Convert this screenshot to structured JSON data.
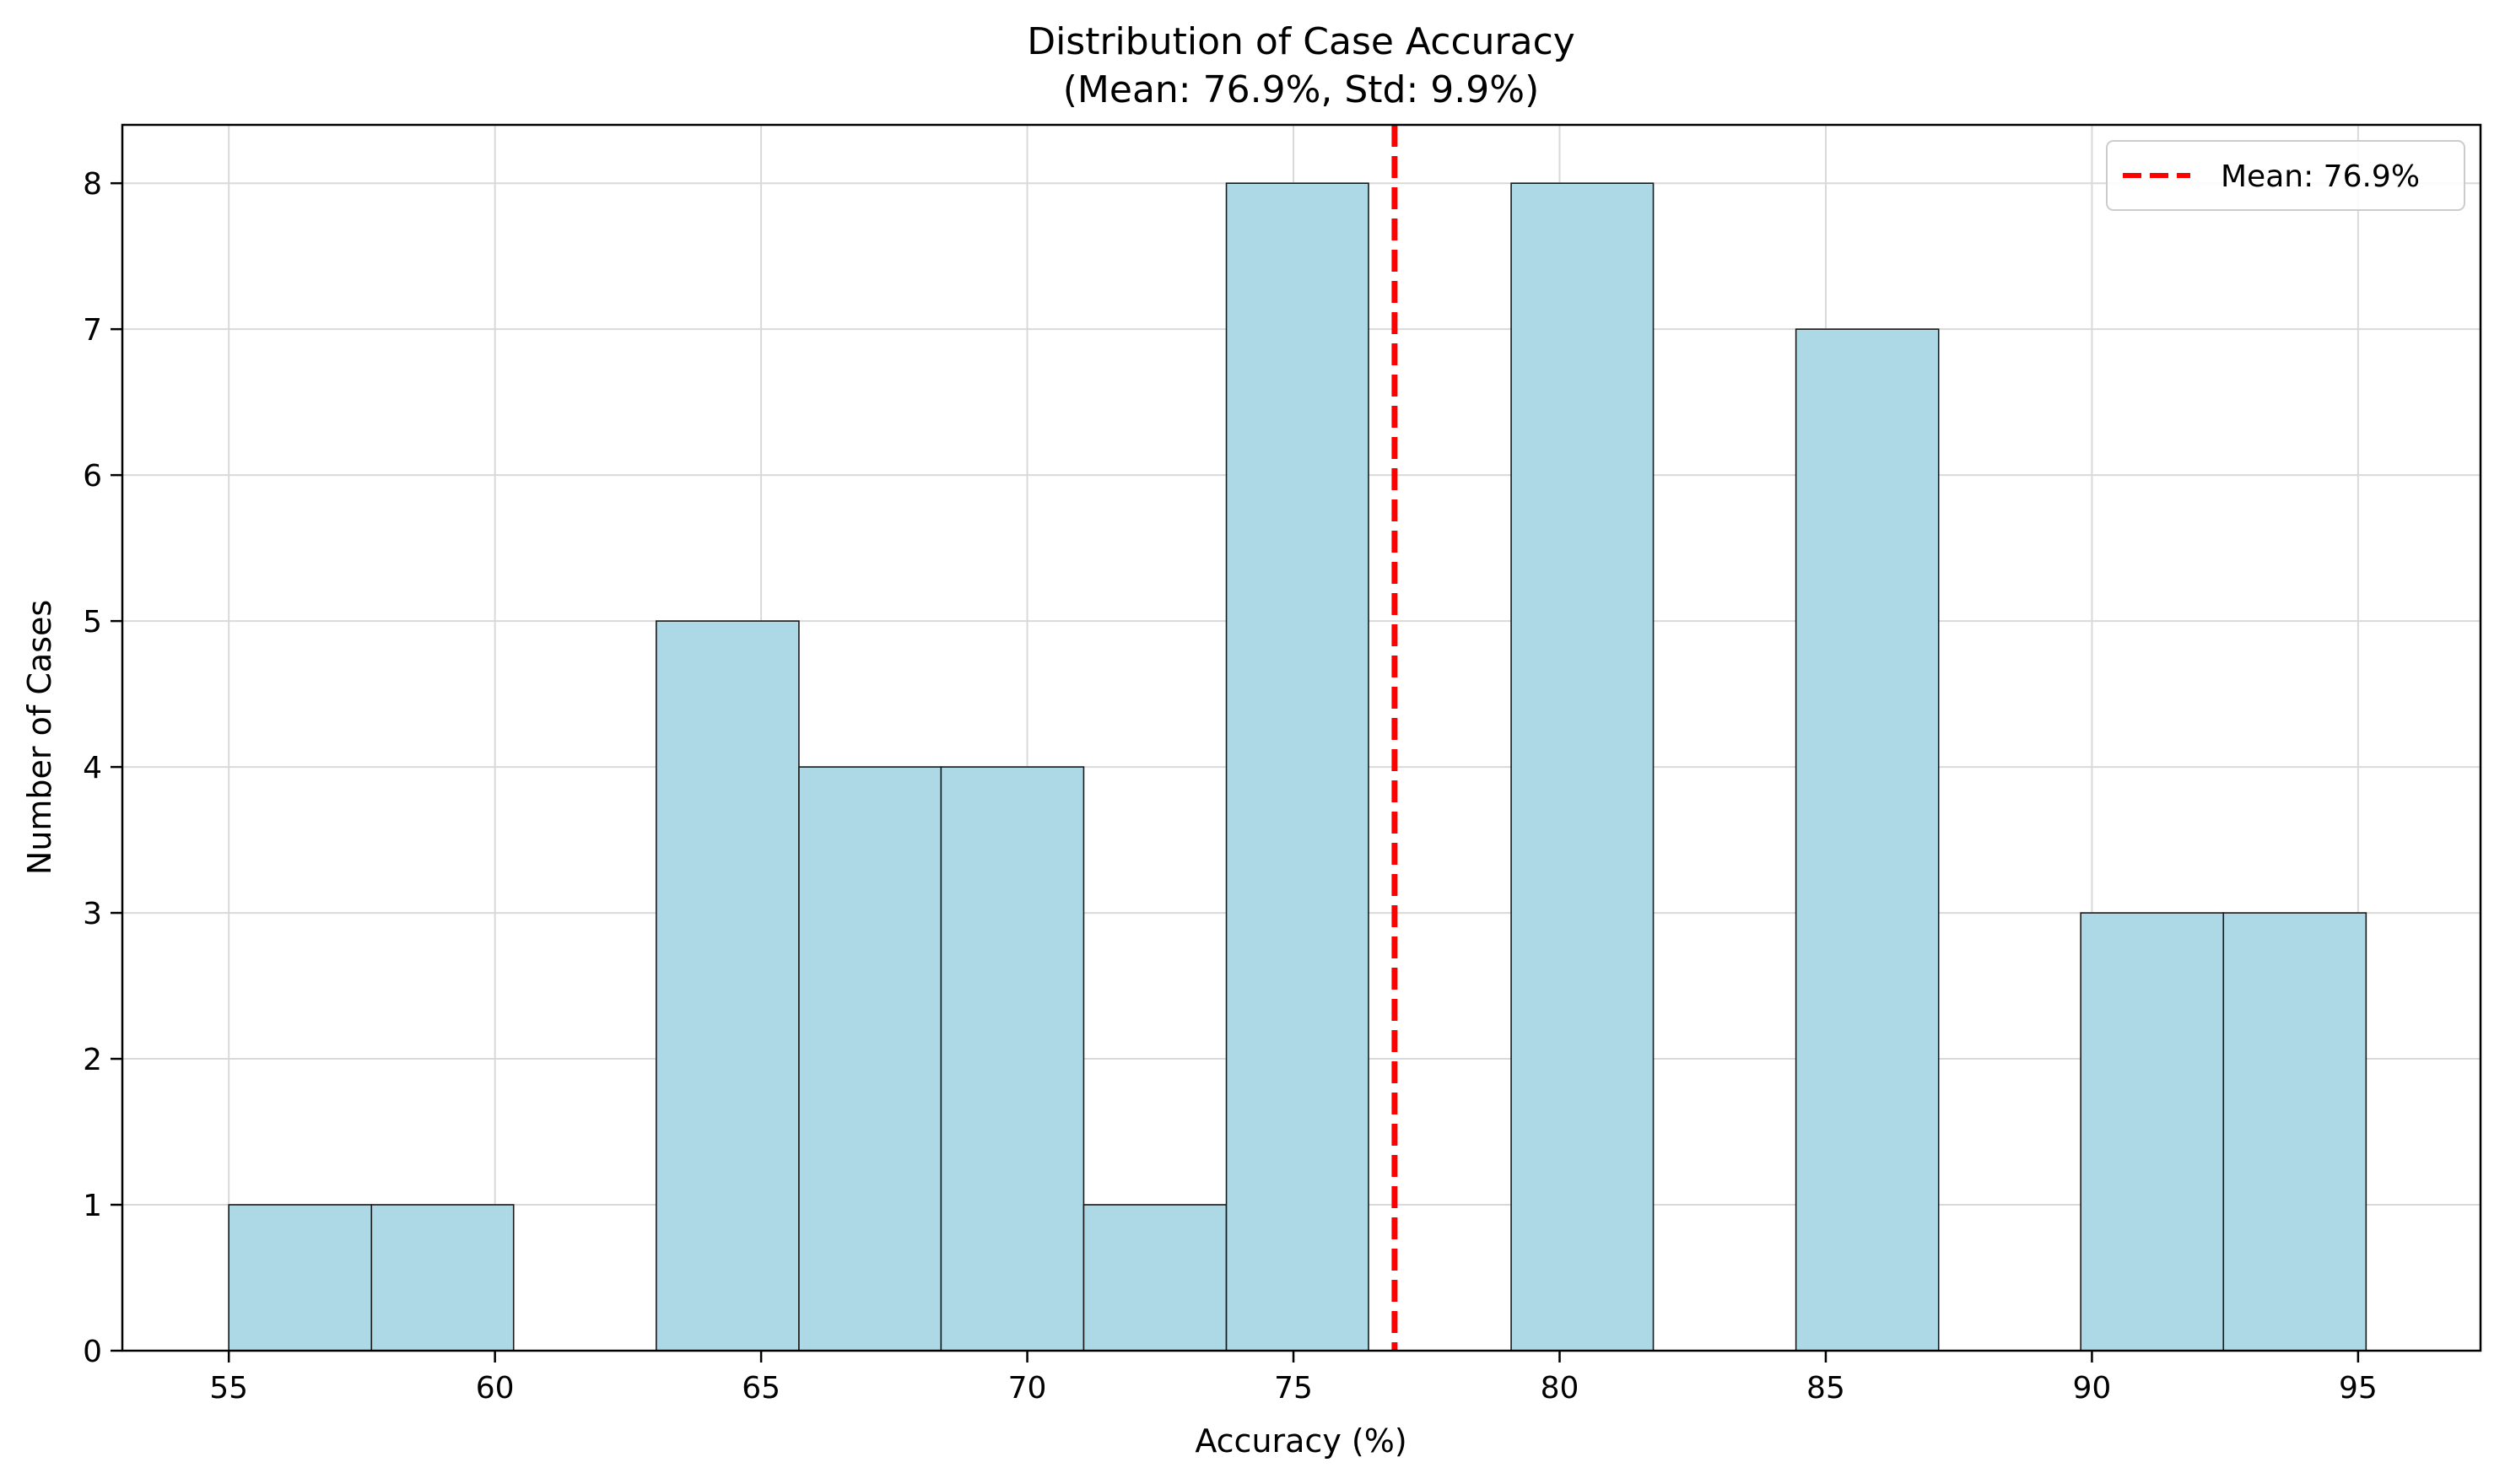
{
  "chart_data": {
    "type": "bar",
    "title": "Distribution of Case Accuracy",
    "subtitle": "(Mean: 76.9%, Std: 9.9%)",
    "xlabel": "Accuracy (%)",
    "ylabel": "Number of Cases",
    "xlim": [
      53,
      97.3
    ],
    "ylim": [
      0,
      8.4
    ],
    "xticks": [
      55,
      60,
      65,
      70,
      75,
      80,
      85,
      90,
      95
    ],
    "yticks": [
      0,
      1,
      2,
      3,
      4,
      5,
      6,
      7,
      8
    ],
    "bins": [
      {
        "start": 55.0,
        "end": 57.68,
        "count": 1
      },
      {
        "start": 57.68,
        "end": 60.35,
        "count": 1
      },
      {
        "start": 60.35,
        "end": 63.03,
        "count": 0
      },
      {
        "start": 63.03,
        "end": 65.71,
        "count": 5
      },
      {
        "start": 65.71,
        "end": 68.38,
        "count": 4
      },
      {
        "start": 68.38,
        "end": 71.06,
        "count": 4
      },
      {
        "start": 71.06,
        "end": 73.74,
        "count": 1
      },
      {
        "start": 73.74,
        "end": 76.41,
        "count": 8
      },
      {
        "start": 76.41,
        "end": 79.09,
        "count": 0
      },
      {
        "start": 79.09,
        "end": 81.76,
        "count": 8
      },
      {
        "start": 81.76,
        "end": 84.44,
        "count": 0
      },
      {
        "start": 84.44,
        "end": 87.12,
        "count": 7
      },
      {
        "start": 87.12,
        "end": 89.79,
        "count": 0
      },
      {
        "start": 89.79,
        "end": 92.47,
        "count": 3
      },
      {
        "start": 92.47,
        "end": 95.15,
        "count": 3
      }
    ],
    "mean_line": {
      "value": 76.9,
      "label": "Mean: 76.9%",
      "color": "#ff0000",
      "style": "dashed"
    },
    "bar_color": "#add8e6",
    "bar_edge_color": "#1a1a1a",
    "grid": true,
    "legend": {
      "position": "top-right",
      "entries": [
        "Mean: 76.9%"
      ]
    }
  }
}
